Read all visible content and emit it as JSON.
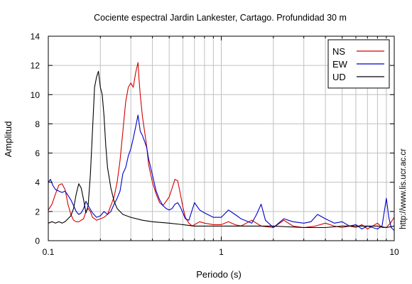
{
  "chart_data": {
    "type": "line",
    "title": "Cociente espectral Jardin Lankester, Cartago. Profundidad 30 m",
    "xlabel": "Periodo (s)",
    "ylabel": "Amplitud",
    "xscale": "log",
    "xlim": [
      0.1,
      10
    ],
    "ylim": [
      0,
      14
    ],
    "xticks": [
      0.1,
      1,
      10
    ],
    "xtick_labels": [
      "0.1",
      "1",
      "10"
    ],
    "yticks": [
      0,
      2,
      4,
      6,
      8,
      10,
      12,
      14
    ],
    "ytick_labels": [
      "0",
      "2",
      "4",
      "6",
      "8",
      "10",
      "12",
      "14"
    ],
    "grid": true,
    "legend_position": "top-right",
    "watermark": "http://www.lis.ucr.ac.cr",
    "series": [
      {
        "name": "NS",
        "color": "#d40000",
        "x": [
          0.1,
          0.105,
          0.11,
          0.115,
          0.12,
          0.125,
          0.13,
          0.135,
          0.14,
          0.145,
          0.15,
          0.155,
          0.16,
          0.165,
          0.17,
          0.175,
          0.18,
          0.19,
          0.2,
          0.21,
          0.22,
          0.23,
          0.24,
          0.25,
          0.26,
          0.27,
          0.28,
          0.29,
          0.3,
          0.31,
          0.32,
          0.33,
          0.335,
          0.34,
          0.35,
          0.36,
          0.37,
          0.38,
          0.4,
          0.42,
          0.44,
          0.46,
          0.48,
          0.5,
          0.52,
          0.54,
          0.56,
          0.58,
          0.6,
          0.62,
          0.65,
          0.68,
          0.7,
          0.75,
          0.8,
          0.9,
          1.0,
          1.1,
          1.2,
          1.3,
          1.5,
          1.7,
          2.0,
          2.3,
          2.6,
          3.0,
          3.5,
          4.0,
          4.5,
          5.0,
          5.5,
          6.0,
          6.5,
          7.0,
          7.5,
          8.0,
          8.5,
          9.0,
          9.5,
          10.0
        ],
        "values": [
          2.1,
          2.5,
          3.2,
          3.8,
          3.9,
          3.5,
          2.5,
          1.8,
          1.4,
          1.3,
          1.3,
          1.4,
          1.5,
          2.0,
          2.2,
          2.0,
          1.6,
          1.4,
          1.5,
          1.6,
          1.8,
          2.4,
          3.0,
          4.0,
          5.5,
          7.5,
          9.5,
          10.5,
          10.8,
          10.5,
          11.5,
          12.2,
          11.0,
          10.0,
          8.5,
          7.5,
          6.5,
          5.2,
          4.0,
          3.2,
          2.6,
          2.4,
          2.7,
          3.0,
          3.6,
          4.2,
          4.1,
          3.2,
          2.3,
          1.6,
          1.2,
          1.0,
          1.1,
          1.3,
          1.2,
          1.1,
          1.1,
          1.3,
          1.1,
          1.0,
          1.4,
          1.0,
          0.9,
          1.4,
          1.0,
          0.9,
          1.0,
          1.2,
          1.0,
          0.9,
          1.0,
          0.9,
          1.1,
          0.8,
          1.0,
          1.2,
          0.9,
          0.9,
          1.2,
          1.6
        ]
      },
      {
        "name": "EW",
        "color": "#0000cc",
        "x": [
          0.1,
          0.103,
          0.106,
          0.11,
          0.115,
          0.12,
          0.125,
          0.13,
          0.135,
          0.14,
          0.145,
          0.15,
          0.155,
          0.16,
          0.165,
          0.17,
          0.18,
          0.19,
          0.2,
          0.21,
          0.22,
          0.23,
          0.24,
          0.25,
          0.26,
          0.27,
          0.28,
          0.29,
          0.3,
          0.31,
          0.32,
          0.33,
          0.34,
          0.35,
          0.36,
          0.37,
          0.38,
          0.4,
          0.42,
          0.44,
          0.46,
          0.48,
          0.5,
          0.52,
          0.54,
          0.56,
          0.58,
          0.6,
          0.62,
          0.65,
          0.7,
          0.75,
          0.8,
          0.9,
          1.0,
          1.1,
          1.2,
          1.3,
          1.5,
          1.6,
          1.7,
          1.8,
          2.0,
          2.3,
          2.6,
          3.0,
          3.3,
          3.6,
          4.0,
          4.5,
          5.0,
          5.5,
          6.0,
          6.5,
          7.0,
          7.5,
          8.0,
          8.5,
          9.0,
          9.3,
          9.6,
          10.0
        ],
        "values": [
          4.0,
          4.2,
          3.8,
          3.5,
          3.4,
          3.3,
          3.4,
          3.1,
          2.8,
          2.4,
          2.0,
          1.8,
          1.9,
          2.2,
          2.7,
          2.4,
          1.9,
          1.6,
          1.7,
          2.0,
          1.8,
          2.0,
          2.5,
          2.9,
          3.4,
          4.6,
          5.0,
          5.8,
          6.3,
          7.0,
          7.8,
          8.6,
          7.5,
          7.2,
          6.8,
          6.4,
          5.6,
          4.5,
          3.4,
          2.8,
          2.4,
          2.2,
          2.1,
          2.2,
          2.5,
          2.6,
          2.3,
          1.9,
          1.5,
          1.4,
          2.6,
          2.1,
          1.9,
          1.6,
          1.6,
          2.1,
          1.8,
          1.5,
          1.2,
          1.8,
          2.5,
          1.4,
          0.9,
          1.5,
          1.3,
          1.2,
          1.3,
          1.8,
          1.5,
          1.2,
          1.3,
          1.0,
          1.1,
          0.8,
          1.0,
          0.9,
          0.8,
          1.0,
          2.9,
          1.6,
          0.9,
          0.7
        ]
      },
      {
        "name": "UD",
        "color": "#000000",
        "x": [
          0.1,
          0.105,
          0.11,
          0.115,
          0.12,
          0.125,
          0.13,
          0.135,
          0.14,
          0.145,
          0.15,
          0.155,
          0.16,
          0.165,
          0.17,
          0.175,
          0.18,
          0.185,
          0.19,
          0.195,
          0.2,
          0.205,
          0.21,
          0.215,
          0.22,
          0.23,
          0.24,
          0.25,
          0.27,
          0.3,
          0.35,
          0.4,
          0.5,
          0.6,
          0.7,
          0.8,
          1.0,
          1.3,
          1.7,
          2.0,
          3.0,
          4.0,
          5.0,
          6.0,
          7.0,
          8.0,
          9.0,
          10.0
        ],
        "values": [
          1.2,
          1.3,
          1.2,
          1.3,
          1.2,
          1.3,
          1.5,
          1.7,
          2.2,
          3.2,
          3.9,
          3.6,
          2.8,
          1.9,
          2.4,
          4.5,
          7.5,
          10.5,
          11.2,
          11.6,
          10.5,
          10.0,
          8.5,
          6.5,
          5.0,
          3.6,
          2.7,
          2.2,
          1.8,
          1.6,
          1.4,
          1.3,
          1.2,
          1.1,
          1.0,
          1.0,
          1.0,
          1.0,
          1.0,
          1.0,
          0.9,
          0.9,
          1.0,
          1.0,
          1.0,
          1.0,
          0.9,
          1.0
        ]
      }
    ]
  }
}
